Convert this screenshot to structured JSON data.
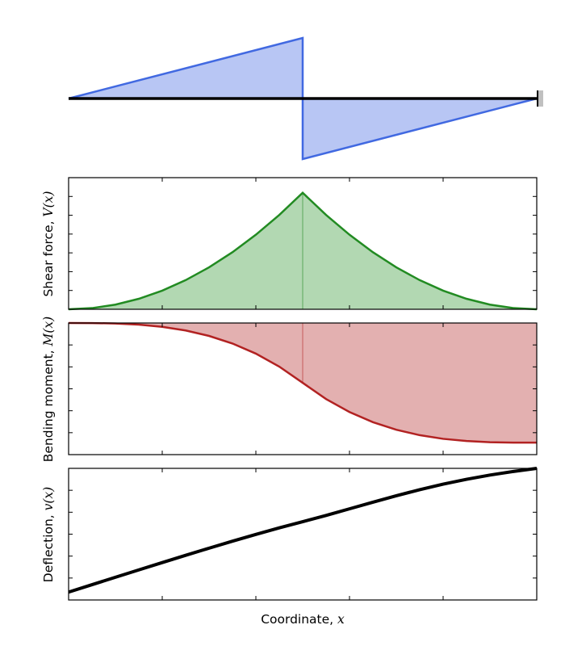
{
  "chart_data": [
    {
      "type": "area",
      "panel": "distributed-load",
      "x": [
        0,
        0.5,
        0.5,
        1
      ],
      "y": [
        0,
        1,
        -1,
        0
      ],
      "baseline": 0,
      "xlim": [
        0,
        1
      ],
      "ylim": [
        -1,
        1
      ],
      "grid": false,
      "frame": false,
      "colors": {
        "fill": "#b8c6f4",
        "line": "#4169e1",
        "beam": "#000000",
        "support": "#c0c0c0"
      }
    },
    {
      "type": "area",
      "panel": "shear-force",
      "ylabel": "Shear force, ",
      "ylabel_math": "V(x)",
      "x": [
        0,
        0.05,
        0.1,
        0.15,
        0.2,
        0.25,
        0.3,
        0.35,
        0.4,
        0.45,
        0.5,
        0.5,
        0.55,
        0.6,
        0.65,
        0.7,
        0.75,
        0.8,
        0.85,
        0.9,
        0.95,
        1
      ],
      "y": [
        0,
        0.01,
        0.04,
        0.09,
        0.16,
        0.25,
        0.36,
        0.49,
        0.64,
        0.81,
        1.0,
        1.0,
        0.81,
        0.64,
        0.49,
        0.36,
        0.25,
        0.16,
        0.09,
        0.04,
        0.01,
        0
      ],
      "xlim": [
        0,
        1
      ],
      "ylim": [
        0,
        1.13
      ],
      "yticks": 7,
      "xticks": 4,
      "grid": false,
      "colors": {
        "fill": "#b2d8b2",
        "line": "#228b22"
      }
    },
    {
      "type": "area",
      "panel": "bending-moment",
      "ylabel": "Bending moment, ",
      "ylabel_math": "M(x)",
      "x": [
        0,
        0.05,
        0.1,
        0.15,
        0.2,
        0.25,
        0.3,
        0.35,
        0.4,
        0.45,
        0.5,
        0.5,
        0.55,
        0.6,
        0.65,
        0.7,
        0.75,
        0.8,
        0.85,
        0.9,
        0.95,
        1
      ],
      "y": [
        0,
        -0.0005,
        -0.004,
        -0.0135,
        -0.032,
        -0.0625,
        -0.108,
        -0.1715,
        -0.256,
        -0.3645,
        -0.5,
        -0.5,
        -0.6355,
        -0.744,
        -0.8285,
        -0.892,
        -0.9375,
        -0.968,
        -0.9865,
        -0.996,
        -0.9995,
        -1
      ],
      "xlim": [
        0,
        1
      ],
      "ylim": [
        -1.1,
        0
      ],
      "yticks": 6,
      "xticks": 4,
      "grid": false,
      "colors": {
        "fill": "#e3b0b0",
        "line": "#b22222"
      }
    },
    {
      "type": "line",
      "panel": "deflection",
      "ylabel": "Deflection, ",
      "ylabel_math": "v(x)",
      "xlabel": "Coordinate, ",
      "xlabel_math": "x",
      "x": [
        0,
        0.05,
        0.1,
        0.15,
        0.2,
        0.25,
        0.3,
        0.35,
        0.4,
        0.45,
        0.5,
        0.55,
        0.6,
        0.65,
        0.7,
        0.75,
        0.8,
        0.85,
        0.9,
        0.95,
        1
      ],
      "y": [
        -1,
        -0.9438,
        -0.8875,
        -0.8315,
        -0.7758,
        -0.7207,
        -0.6665,
        -0.6134,
        -0.5618,
        -0.5122,
        -0.465,
        -0.4175,
        -0.3675,
        -0.317,
        -0.268,
        -0.222,
        -0.18,
        -0.143,
        -0.111,
        -0.084,
        -0.06
      ],
      "xlim": [
        0,
        1
      ],
      "ylim": [
        -1.06,
        -0.06
      ],
      "yticks": 6,
      "xticks": 4,
      "grid": false,
      "colors": {
        "line": "#000000"
      }
    }
  ]
}
